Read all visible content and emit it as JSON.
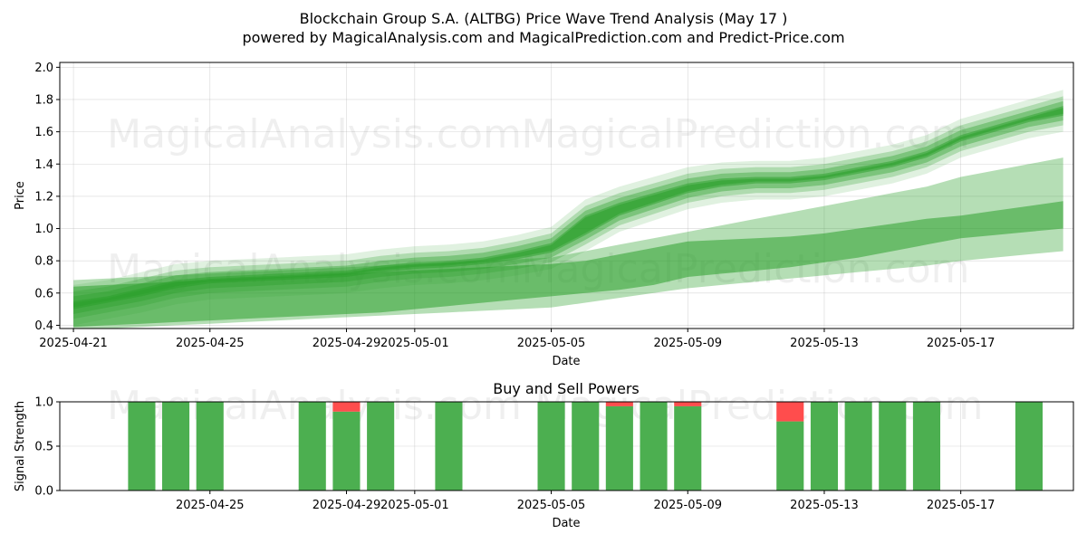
{
  "title_line1": "Blockchain Group S.A. (ALTBG) Price Wave Trend Analysis (May 17 )",
  "title_line2": "powered by MagicalAnalysis.com and MagicalPrediction.com and Predict-Price.com",
  "watermarks": [
    "MagicalAnalysis.com",
    "MagicalPrediction.com"
  ],
  "colors": {
    "green_band": "#2ca02c",
    "buy": "#4caf50",
    "sell": "#ff4d4d",
    "grid": "#b0b0b0"
  },
  "chart_data": [
    {
      "type": "area",
      "name": "price-wave",
      "xlabel": "Date",
      "ylabel": "Price",
      "grid": true,
      "x_ticks": [
        "2025-04-21",
        "2025-04-25",
        "2025-04-29",
        "2025-05-01",
        "2025-05-05",
        "2025-05-09",
        "2025-05-13",
        "2025-05-17"
      ],
      "x_tick_days": [
        0,
        4,
        8,
        10,
        14,
        18,
        22,
        26
      ],
      "xlim_days": [
        -0.4,
        29.3
      ],
      "ylim": [
        0.38,
        2.03
      ],
      "y_ticks": [
        0.4,
        0.6,
        0.8,
        1.0,
        1.2,
        1.4,
        1.6,
        1.8,
        2.0
      ],
      "x_days": [
        0,
        1,
        2,
        3,
        4,
        5,
        6,
        7,
        8,
        9,
        10,
        11,
        12,
        13,
        14,
        15,
        16,
        17,
        18,
        19,
        20,
        21,
        22,
        23,
        24,
        25,
        26,
        27,
        28,
        29
      ],
      "series": [
        {
          "name": "wave-upper",
          "values": [
            0.55,
            0.58,
            0.63,
            0.68,
            0.7,
            0.71,
            0.72,
            0.73,
            0.74,
            0.77,
            0.79,
            0.8,
            0.82,
            0.86,
            0.91,
            1.08,
            1.16,
            1.22,
            1.28,
            1.31,
            1.32,
            1.32,
            1.34,
            1.38,
            1.42,
            1.48,
            1.58,
            1.64,
            1.7,
            1.76
          ]
        },
        {
          "name": "wave-lower",
          "values": [
            0.5,
            0.54,
            0.58,
            0.63,
            0.66,
            0.67,
            0.68,
            0.69,
            0.7,
            0.73,
            0.75,
            0.76,
            0.78,
            0.81,
            0.85,
            0.96,
            1.08,
            1.15,
            1.22,
            1.26,
            1.28,
            1.28,
            1.3,
            1.34,
            1.38,
            1.44,
            1.54,
            1.6,
            1.66,
            1.7
          ]
        },
        {
          "name": "band-1-upper",
          "values": [
            0.68,
            0.69,
            0.7,
            0.71,
            0.72,
            0.73,
            0.74,
            0.75,
            0.76,
            0.77,
            0.78,
            0.79,
            0.8,
            0.81,
            0.82,
            0.86,
            0.9,
            0.94,
            0.98,
            1.02,
            1.06,
            1.1,
            1.14,
            1.18,
            1.22,
            1.26,
            1.32,
            1.36,
            1.4,
            1.44
          ]
        },
        {
          "name": "band-1-lower",
          "values": [
            0.38,
            0.38,
            0.39,
            0.4,
            0.41,
            0.42,
            0.43,
            0.44,
            0.45,
            0.46,
            0.47,
            0.48,
            0.49,
            0.5,
            0.51,
            0.54,
            0.57,
            0.6,
            0.63,
            0.65,
            0.67,
            0.69,
            0.71,
            0.73,
            0.75,
            0.77,
            0.8,
            0.82,
            0.84,
            0.86
          ]
        },
        {
          "name": "band-2-upper",
          "values": [
            0.64,
            0.65,
            0.66,
            0.67,
            0.68,
            0.69,
            0.7,
            0.71,
            0.72,
            0.73,
            0.74,
            0.75,
            0.76,
            0.77,
            0.78,
            0.8,
            0.84,
            0.88,
            0.92,
            0.93,
            0.94,
            0.95,
            0.97,
            1.0,
            1.03,
            1.06,
            1.08,
            1.11,
            1.14,
            1.17
          ]
        },
        {
          "name": "band-2-lower",
          "values": [
            0.39,
            0.4,
            0.41,
            0.42,
            0.43,
            0.44,
            0.45,
            0.46,
            0.47,
            0.48,
            0.5,
            0.52,
            0.54,
            0.56,
            0.58,
            0.6,
            0.62,
            0.65,
            0.7,
            0.72,
            0.74,
            0.76,
            0.79,
            0.82,
            0.86,
            0.9,
            0.94,
            0.96,
            0.98,
            1.0
          ]
        }
      ]
    },
    {
      "type": "bar",
      "name": "buy-sell-powers",
      "title": "Buy and Sell Powers",
      "xlabel": "Date",
      "ylabel": "Signal Strength",
      "ylim": [
        0.0,
        1.0
      ],
      "y_ticks": [
        "0.0",
        "0.5",
        "1.0"
      ],
      "x_ticks": [
        "2025-04-25",
        "2025-04-29",
        "2025-05-01",
        "2025-05-05",
        "2025-05-09",
        "2025-05-13",
        "2025-05-17"
      ],
      "x_tick_days": [
        4,
        8,
        10,
        14,
        18,
        22,
        26
      ],
      "xlim_days": [
        -0.4,
        29.3
      ],
      "x_days": [
        2,
        3,
        4,
        7,
        8,
        9,
        11,
        14,
        15,
        16,
        17,
        18,
        21,
        22,
        23,
        24,
        25,
        28
      ],
      "series": [
        {
          "name": "buy",
          "values": [
            1.0,
            1.0,
            1.0,
            1.0,
            0.89,
            1.0,
            1.0,
            1.0,
            1.0,
            0.95,
            1.0,
            0.95,
            0.78,
            1.0,
            1.0,
            1.0,
            1.0,
            1.0
          ]
        },
        {
          "name": "sell",
          "values": [
            0.0,
            0.0,
            0.0,
            0.0,
            0.11,
            0.0,
            0.0,
            0.0,
            0.0,
            0.05,
            0.0,
            0.05,
            0.22,
            0.0,
            0.0,
            0.0,
            0.0,
            0.0
          ]
        }
      ]
    }
  ]
}
